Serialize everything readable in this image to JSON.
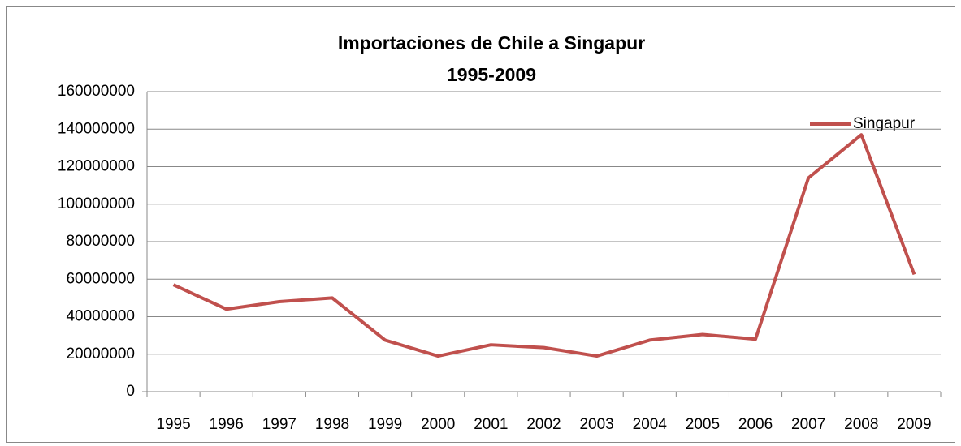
{
  "chart_data": {
    "type": "line",
    "title": [
      "Importaciones de Chile a Singapur",
      "1995-2009"
    ],
    "categories": [
      "1995",
      "1996",
      "1997",
      "1998",
      "1999",
      "2000",
      "2001",
      "2002",
      "2003",
      "2004",
      "2005",
      "2006",
      "2007",
      "2008",
      "2009"
    ],
    "series": [
      {
        "name": "Singapur",
        "color": "#c0504d",
        "values": [
          57000000,
          44000000,
          48000000,
          50000000,
          27500000,
          19000000,
          25000000,
          23500000,
          19000000,
          27500000,
          30500000,
          28000000,
          114000000,
          137000000,
          62500000
        ]
      }
    ],
    "ylim": [
      0,
      160000000
    ],
    "yticks": [
      0,
      20000000,
      40000000,
      60000000,
      80000000,
      100000000,
      120000000,
      140000000,
      160000000
    ],
    "grid": true,
    "legend": "top-right"
  }
}
